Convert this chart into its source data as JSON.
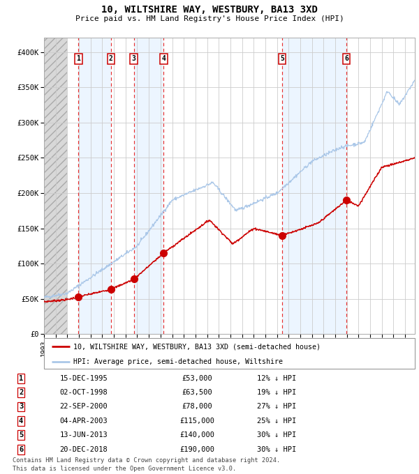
{
  "title": "10, WILTSHIRE WAY, WESTBURY, BA13 3XD",
  "subtitle": "Price paid vs. HM Land Registry's House Price Index (HPI)",
  "hpi_color": "#aac7e8",
  "price_color": "#cc0000",
  "sale_marker_color": "#cc0000",
  "background_color": "#ffffff",
  "chart_bg": "#ffffff",
  "shaded_bg": "#ddeeff",
  "grid_color": "#cccccc",
  "vline_color": "#e83030",
  "ylim": [
    0,
    420000
  ],
  "yticks": [
    0,
    50000,
    100000,
    150000,
    200000,
    250000,
    300000,
    350000,
    400000
  ],
  "ytick_labels": [
    "£0",
    "£50K",
    "£100K",
    "£150K",
    "£200K",
    "£250K",
    "£300K",
    "£350K",
    "£400K"
  ],
  "xlim_start": 1993.0,
  "xlim_end": 2024.83,
  "sale_dates": [
    1995.958,
    1998.75,
    2000.72,
    2003.26,
    2013.44,
    2018.96
  ],
  "sale_prices": [
    53000,
    63500,
    78000,
    115000,
    140000,
    190000
  ],
  "sale_labels": [
    "1",
    "2",
    "3",
    "4",
    "5",
    "6"
  ],
  "sale_table": [
    [
      "1",
      "15-DEC-1995",
      "£53,000",
      "12% ↓ HPI"
    ],
    [
      "2",
      "02-OCT-1998",
      "£63,500",
      "19% ↓ HPI"
    ],
    [
      "3",
      "22-SEP-2000",
      "£78,000",
      "27% ↓ HPI"
    ],
    [
      "4",
      "04-APR-2003",
      "£115,000",
      "25% ↓ HPI"
    ],
    [
      "5",
      "13-JUN-2013",
      "£140,000",
      "30% ↓ HPI"
    ],
    [
      "6",
      "20-DEC-2018",
      "£190,000",
      "30% ↓ HPI"
    ]
  ],
  "legend_line1": "10, WILTSHIRE WAY, WESTBURY, BA13 3XD (semi-detached house)",
  "legend_line2": "HPI: Average price, semi-detached house, Wiltshire",
  "footnote1": "Contains HM Land Registry data © Crown copyright and database right 2024.",
  "footnote2": "This data is licensed under the Open Government Licence v3.0.",
  "pre_chart_hatch_end": 1995.0
}
